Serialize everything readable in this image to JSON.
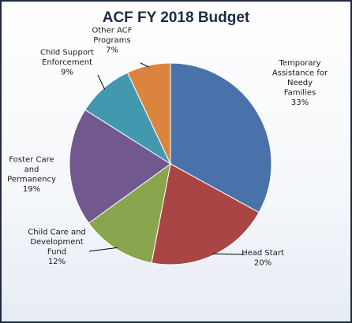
{
  "chart_data": {
    "type": "pie",
    "title": "ACF FY 2018 Budget",
    "start_angle": 0,
    "direction": "clockwise",
    "slices": [
      {
        "label_lines": [
          "Temporary",
          "Assistance for",
          "Needy",
          "Families"
        ],
        "percent_label": "33%",
        "value": 33,
        "color": "#4a72aa"
      },
      {
        "label_lines": [
          "Head Start"
        ],
        "percent_label": "20%",
        "value": 20,
        "color": "#a94544"
      },
      {
        "label_lines": [
          "Child Care and",
          "Development",
          "Fund"
        ],
        "percent_label": "12%",
        "value": 12,
        "color": "#89a54e"
      },
      {
        "label_lines": [
          "Foster Care",
          "and",
          "Permanency"
        ],
        "percent_label": "19%",
        "value": 19,
        "color": "#71588f"
      },
      {
        "label_lines": [
          "Child Support",
          "Enforcement"
        ],
        "percent_label": "9%",
        "value": 9,
        "color": "#4298af"
      },
      {
        "label_lines": [
          "Other ACF",
          "Programs"
        ],
        "percent_label": "7%",
        "value": 7,
        "color": "#db843d"
      }
    ]
  }
}
